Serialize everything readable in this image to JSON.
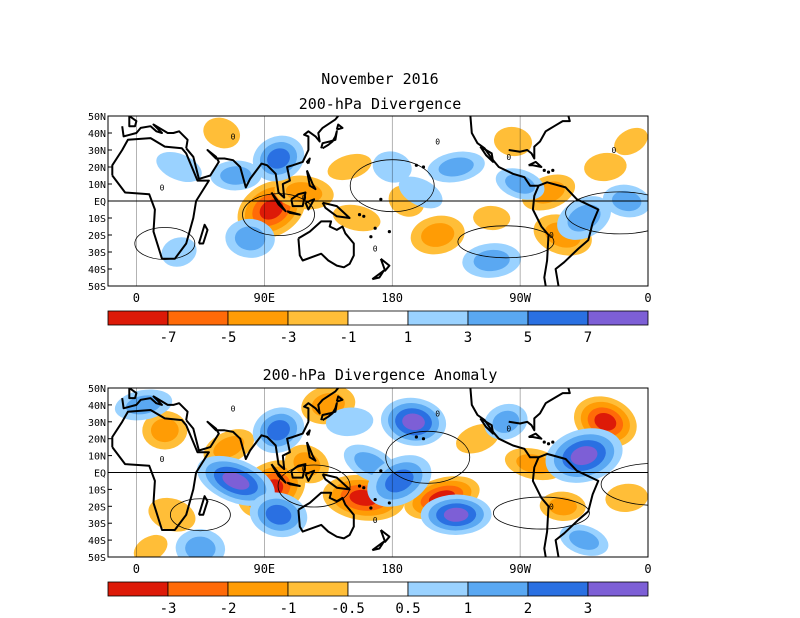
{
  "figure_title": "November 2016",
  "chart_data": [
    {
      "type": "heatmap",
      "title": "200-hPa Divergence",
      "x_ticks": [
        "0",
        "90E",
        "180",
        "90W",
        "0"
      ],
      "y_ticks": [
        "50N",
        "40N",
        "30N",
        "20N",
        "10N",
        "EQ",
        "10S",
        "20S",
        "30S",
        "40S",
        "50S"
      ],
      "colorbar": {
        "levels": [
          "-7",
          "-5",
          "-3",
          "-1",
          "1",
          "3",
          "5",
          "7"
        ],
        "colors": [
          "#dd1a08",
          "#ff6a08",
          "#ff9c05",
          "#ffbe38",
          "#ffffff",
          "#9ad2ff",
          "#5aa8f2",
          "#2a70e2",
          "#7d5fd6"
        ]
      },
      "contour_labels": [
        "0",
        "0",
        "0",
        "0",
        "0",
        "0",
        "0",
        "0"
      ],
      "features": [
        {
          "lon": 95,
          "lat": -5,
          "level": 8
        },
        {
          "lon": 118,
          "lat": 5,
          "level": 6
        },
        {
          "lon": 150,
          "lat": 20,
          "level": 5
        },
        {
          "lon": 60,
          "lat": 40,
          "level": 5
        },
        {
          "lon": 5,
          "lat": 45,
          "level": 4
        },
        {
          "lon": 115,
          "lat": 40,
          "level": 4
        },
        {
          "lon": 155,
          "lat": -10,
          "level": 5
        },
        {
          "lon": 212,
          "lat": -20,
          "level": 6
        },
        {
          "lon": 190,
          "lat": 0,
          "level": 5
        },
        {
          "lon": 250,
          "lat": -10,
          "level": 5
        },
        {
          "lon": 290,
          "lat": 5,
          "level": 6
        },
        {
          "lon": 300,
          "lat": -20,
          "level": 6
        },
        {
          "lon": 330,
          "lat": 20,
          "level": 5
        },
        {
          "lon": 348,
          "lat": 35,
          "level": 5
        },
        {
          "lon": 265,
          "lat": 35,
          "level": 5
        },
        {
          "lon": 10,
          "lat": -5,
          "level": 4
        },
        {
          "lon": 30,
          "lat": 20,
          "level": 3
        },
        {
          "lon": 70,
          "lat": 15,
          "level": 2
        },
        {
          "lon": 100,
          "lat": 25,
          "level": 1
        },
        {
          "lon": 180,
          "lat": 20,
          "level": 3
        },
        {
          "lon": 225,
          "lat": 20,
          "level": 2
        },
        {
          "lon": 200,
          "lat": 5,
          "level": 3
        },
        {
          "lon": 80,
          "lat": -22,
          "level": 2
        },
        {
          "lon": 30,
          "lat": -30,
          "level": 3
        },
        {
          "lon": 270,
          "lat": 10,
          "level": 2
        },
        {
          "lon": 250,
          "lat": -35,
          "level": 2
        },
        {
          "lon": 315,
          "lat": -10,
          "level": 2
        },
        {
          "lon": 345,
          "lat": 0,
          "level": 2
        }
      ]
    },
    {
      "type": "heatmap",
      "title": "200-hPa Divergence Anomaly",
      "x_ticks": [
        "0",
        "90E",
        "180",
        "90W",
        "0"
      ],
      "y_ticks": [
        "50N",
        "40N",
        "30N",
        "20N",
        "10N",
        "EQ",
        "10S",
        "20S",
        "30S",
        "40S",
        "50S"
      ],
      "colorbar": {
        "levels": [
          "-3",
          "-2",
          "-1",
          "-0.5",
          "0.5",
          "1",
          "2",
          "3"
        ],
        "colors": [
          "#dd1a08",
          "#ff6a08",
          "#ff9c05",
          "#ffbe38",
          "#ffffff",
          "#9ad2ff",
          "#5aa8f2",
          "#2a70e2",
          "#7d5fd6"
        ]
      },
      "contour_labels": [
        "0",
        "0",
        "0",
        "0",
        "0",
        "0",
        "0"
      ],
      "features": [
        {
          "lon": 95,
          "lat": -10,
          "level": 8
        },
        {
          "lon": 160,
          "lat": -15,
          "level": 8
        },
        {
          "lon": 215,
          "lat": -15,
          "level": 8
        },
        {
          "lon": 330,
          "lat": 30,
          "level": 8
        },
        {
          "lon": 20,
          "lat": 25,
          "level": 6
        },
        {
          "lon": 65,
          "lat": 15,
          "level": 6
        },
        {
          "lon": 280,
          "lat": 5,
          "level": 6
        },
        {
          "lon": 135,
          "lat": 40,
          "level": 6
        },
        {
          "lon": 120,
          "lat": 5,
          "level": 6
        },
        {
          "lon": 300,
          "lat": -20,
          "level": 6
        },
        {
          "lon": 240,
          "lat": 20,
          "level": 5
        },
        {
          "lon": 25,
          "lat": -25,
          "level": 5
        },
        {
          "lon": 345,
          "lat": -15,
          "level": 5
        },
        {
          "lon": 10,
          "lat": -45,
          "level": 5
        },
        {
          "lon": 195,
          "lat": 30,
          "level": 0
        },
        {
          "lon": 315,
          "lat": 10,
          "level": 0
        },
        {
          "lon": 70,
          "lat": -5,
          "level": 0
        },
        {
          "lon": 225,
          "lat": -25,
          "level": 0
        },
        {
          "lon": 100,
          "lat": 25,
          "level": 1
        },
        {
          "lon": 100,
          "lat": -25,
          "level": 1
        },
        {
          "lon": 5,
          "lat": 40,
          "level": 2
        },
        {
          "lon": 165,
          "lat": 5,
          "level": 2
        },
        {
          "lon": 45,
          "lat": -45,
          "level": 2
        },
        {
          "lon": 260,
          "lat": 30,
          "level": 2
        },
        {
          "lon": 315,
          "lat": -40,
          "level": 2
        },
        {
          "lon": 150,
          "lat": 30,
          "level": 3
        },
        {
          "lon": 185,
          "lat": -5,
          "level": 1
        }
      ]
    }
  ]
}
